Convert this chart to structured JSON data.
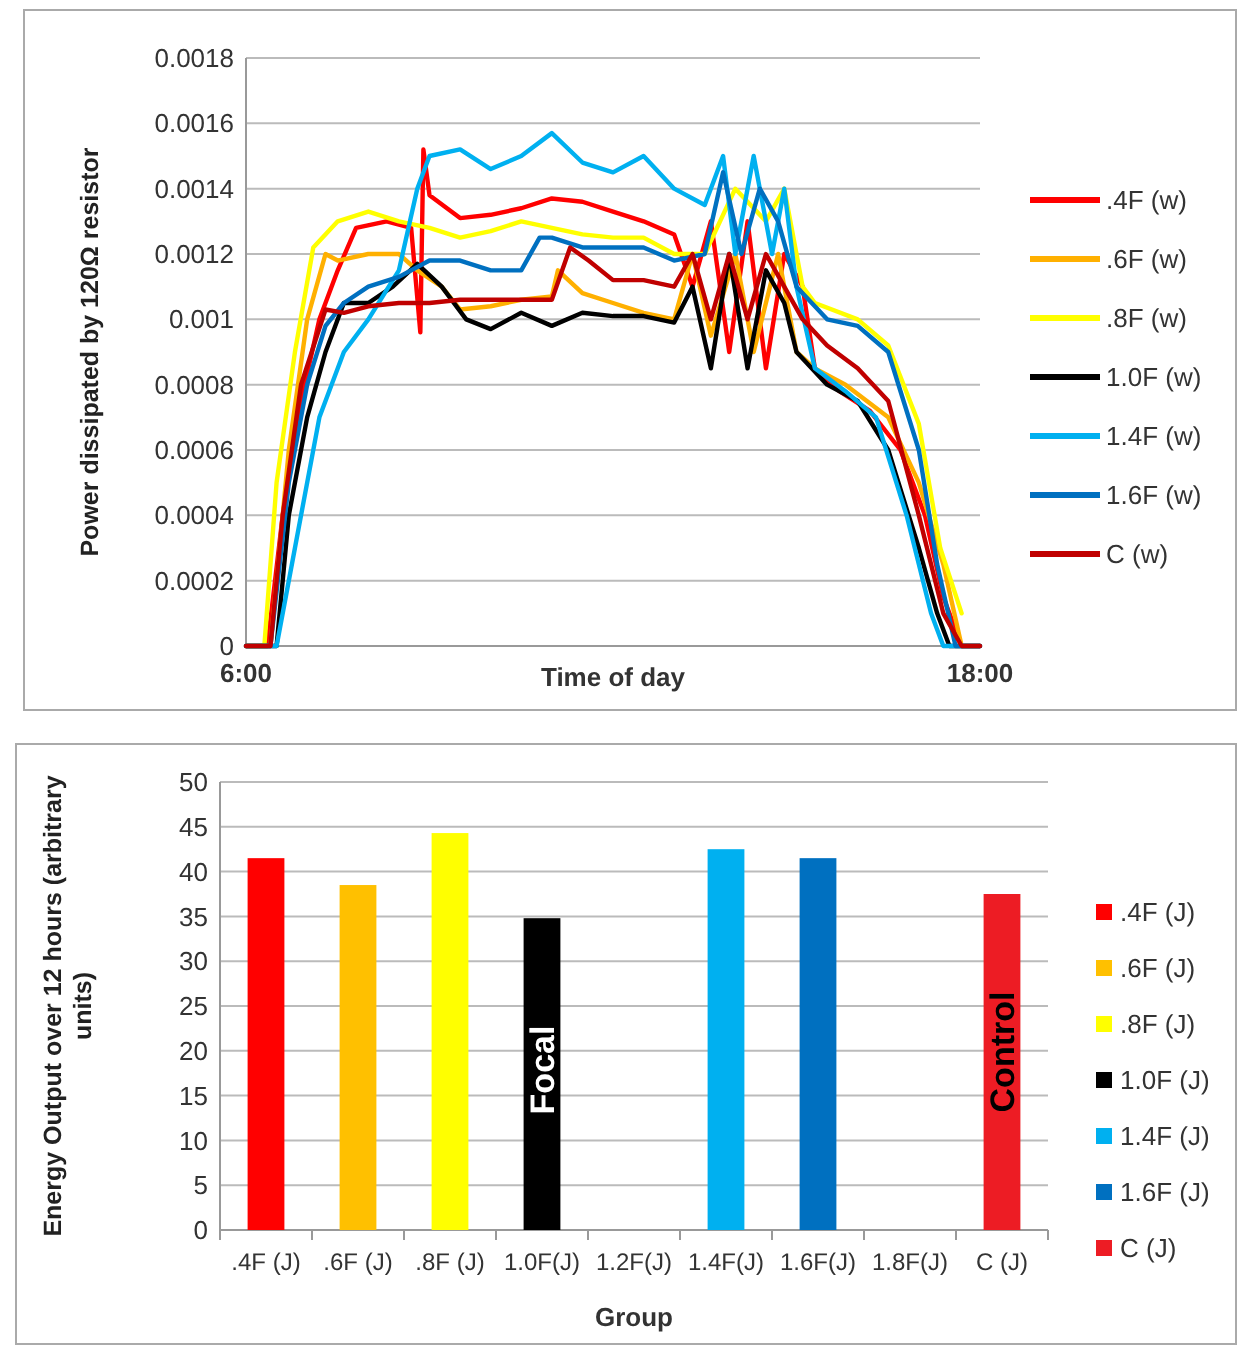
{
  "chart_data": [
    {
      "type": "line",
      "xlabel": "Time of day",
      "ylabel": "Power dissipated by 120Ω resistor",
      "xlim": [
        6,
        18
      ],
      "xticks": [
        {
          "value": 6,
          "label": "6:00"
        },
        {
          "value": 18,
          "label": "18:00"
        }
      ],
      "ylim": [
        0,
        0.0018
      ],
      "yticks": [
        0,
        0.0002,
        0.0004,
        0.0006,
        0.0008,
        0.001,
        0.0012,
        0.0014,
        0.0016,
        0.0018
      ],
      "grid": "y",
      "legend": "right",
      "marker": "none",
      "line_style": "solid",
      "series": [
        {
          "name": ".4F (w)",
          "color": "#ff0000",
          "x": [
            6,
            6.35,
            6.6,
            6.9,
            7.2,
            7.5,
            7.8,
            8.3,
            8.7,
            8.85,
            8.9,
            9,
            9.5,
            10,
            10.5,
            11,
            11.5,
            12,
            12.5,
            13,
            13.3,
            13.6,
            13.9,
            14.2,
            14.5,
            14.8,
            15.1,
            15.3,
            15.7,
            16.2,
            16.7,
            17.1,
            17.4,
            17.7,
            18
          ],
          "values": [
            0,
            0,
            0.0004,
            0.00075,
            0.001,
            0.00115,
            0.00128,
            0.0013,
            0.00128,
            0.00096,
            0.00152,
            0.00138,
            0.00131,
            0.00132,
            0.00134,
            0.00137,
            0.00136,
            0.00133,
            0.0013,
            0.00126,
            0.0011,
            0.0013,
            0.0009,
            0.0013,
            0.00085,
            0.0012,
            0.0011,
            0.00085,
            0.00078,
            0.00072,
            0.0006,
            0.0004,
            0.00015,
            0,
            0
          ]
        },
        {
          "name": ".6F (w)",
          "color": "#ffb000",
          "x": [
            6,
            6.4,
            6.7,
            7,
            7.3,
            7.5,
            8,
            8.5,
            8.8,
            9.2,
            9.5,
            10,
            10.5,
            11,
            11.1,
            11.5,
            12,
            12.5,
            13,
            13.3,
            13.6,
            14,
            14.3,
            14.7,
            15,
            15.3,
            15.8,
            16.5,
            17,
            17.4,
            17.7,
            18
          ],
          "values": [
            0,
            0,
            0.0006,
            0.001,
            0.0012,
            0.00118,
            0.0012,
            0.0012,
            0.00115,
            0.0011,
            0.00103,
            0.00104,
            0.00106,
            0.00107,
            0.00115,
            0.00108,
            0.00105,
            0.00102,
            0.001,
            0.0012,
            0.00095,
            0.0012,
            0.0009,
            0.0012,
            0.0009,
            0.00085,
            0.0008,
            0.0007,
            0.0005,
            0.00025,
            0,
            0
          ]
        },
        {
          "name": ".8F (w)",
          "color": "#ffff00",
          "x": [
            6,
            6.3,
            6.5,
            6.8,
            7.1,
            7.5,
            8,
            8.5,
            9,
            9.5,
            10,
            10.5,
            11,
            11.5,
            12,
            12.5,
            13,
            13.5,
            14,
            14.5,
            14.8,
            15.1,
            15.3,
            16,
            16.5,
            17,
            17.35,
            17.7
          ],
          "values": [
            0,
            0,
            0.0005,
            0.0009,
            0.00122,
            0.0013,
            0.00133,
            0.0013,
            0.00128,
            0.00125,
            0.00127,
            0.0013,
            0.00128,
            0.00126,
            0.00125,
            0.00125,
            0.0012,
            0.0012,
            0.0014,
            0.0013,
            0.0014,
            0.0011,
            0.00105,
            0.001,
            0.00092,
            0.00068,
            0.0003,
            0.0001
          ]
        },
        {
          "name": "1.0F (w)",
          "color": "#000000",
          "x": [
            6,
            6.5,
            6.7,
            7,
            7.3,
            7.6,
            8,
            8.4,
            8.8,
            9.2,
            9.6,
            10,
            10.5,
            11,
            11.5,
            12,
            12.5,
            13,
            13.3,
            13.6,
            13.9,
            14.2,
            14.5,
            14.8,
            15,
            15.5,
            16,
            16.5,
            17,
            17.3,
            17.5,
            18
          ],
          "values": [
            0,
            0,
            0.0004,
            0.0007,
            0.0009,
            0.00105,
            0.00105,
            0.0011,
            0.00117,
            0.0011,
            0.001,
            0.00097,
            0.00102,
            0.00098,
            0.00102,
            0.00101,
            0.00101,
            0.00099,
            0.0011,
            0.00085,
            0.0012,
            0.00085,
            0.00115,
            0.00105,
            0.0009,
            0.0008,
            0.00075,
            0.0006,
            0.0003,
            0.0001,
            0,
            0
          ]
        },
        {
          "name": "1.4F (w)",
          "color": "#00b0f0",
          "x": [
            6,
            6.5,
            6.8,
            7.2,
            7.6,
            8,
            8.5,
            8.8,
            9,
            9.5,
            10,
            10.5,
            11,
            11.5,
            12,
            12.5,
            13,
            13.5,
            13.8,
            14,
            14.3,
            14.6,
            14.8,
            15,
            15.3,
            15.8,
            16.3,
            16.8,
            17.2,
            17.4,
            18
          ],
          "values": [
            0,
            0,
            0.0003,
            0.0007,
            0.0009,
            0.001,
            0.00115,
            0.0014,
            0.0015,
            0.00152,
            0.00146,
            0.0015,
            0.00157,
            0.00148,
            0.00145,
            0.0015,
            0.0014,
            0.00135,
            0.0015,
            0.0012,
            0.0015,
            0.0012,
            0.0014,
            0.0011,
            0.00085,
            0.00078,
            0.0007,
            0.0004,
            0.0001,
            0,
            0
          ]
        },
        {
          "name": "1.6F (w)",
          "color": "#0070c0",
          "x": [
            6,
            6.4,
            6.7,
            7,
            7.3,
            7.6,
            8,
            8.5,
            9,
            9.5,
            10,
            10.5,
            10.8,
            11,
            11.5,
            12,
            12.5,
            13,
            13.5,
            13.8,
            14.1,
            14.4,
            14.7,
            15,
            15.5,
            16,
            16.5,
            17,
            17.3,
            17.6,
            18
          ],
          "values": [
            0,
            0,
            0.0005,
            0.0008,
            0.00098,
            0.00105,
            0.0011,
            0.00113,
            0.00118,
            0.00118,
            0.00115,
            0.00115,
            0.00125,
            0.00125,
            0.00122,
            0.00122,
            0.00122,
            0.00118,
            0.0012,
            0.00145,
            0.0012,
            0.0014,
            0.0013,
            0.0011,
            0.001,
            0.00098,
            0.0009,
            0.0006,
            0.00025,
            0,
            0
          ]
        },
        {
          "name": "C (w)",
          "color": "#c00000",
          "x": [
            6,
            6.4,
            6.6,
            6.9,
            7.3,
            7.6,
            8,
            8.5,
            9,
            9.5,
            10,
            10.5,
            11,
            11.3,
            11.6,
            12,
            12.5,
            13,
            13.3,
            13.6,
            13.9,
            14.2,
            14.5,
            14.8,
            15.1,
            15.5,
            16,
            16.5,
            17,
            17.4,
            17.7,
            18
          ],
          "values": [
            0,
            0,
            0.0004,
            0.0008,
            0.00103,
            0.00102,
            0.00104,
            0.00105,
            0.00105,
            0.00106,
            0.00106,
            0.00106,
            0.00106,
            0.00122,
            0.00118,
            0.00112,
            0.00112,
            0.0011,
            0.0012,
            0.001,
            0.0012,
            0.001,
            0.0012,
            0.0011,
            0.001,
            0.00092,
            0.00085,
            0.00075,
            0.0004,
            0.0001,
            0,
            0
          ]
        }
      ]
    },
    {
      "type": "bar",
      "xlabel": "Group",
      "ylabel": "Energy Output over 12 hours (arbitrary units)",
      "categories": [
        ".4F (J)",
        ".6F (J)",
        ".8F (J)",
        "1.0F(J)",
        "1.2F(J)",
        "1.4F(J)",
        "1.6F(J)",
        "1.8F(J)",
        "C (J)"
      ],
      "ylim": [
        0,
        50
      ],
      "yticks": [
        0,
        5,
        10,
        15,
        20,
        25,
        30,
        35,
        40,
        45,
        50
      ],
      "grid": "y",
      "legend": "right",
      "annotations": [
        "Focal",
        "Control"
      ],
      "series": [
        {
          "name": ".4F (J)",
          "color": "#ff0000",
          "values": [
            41.5,
            null,
            null,
            null,
            null,
            null,
            null,
            null,
            null
          ]
        },
        {
          "name": ".6F (J)",
          "color": "#ffc000",
          "values": [
            null,
            38.5,
            null,
            null,
            null,
            null,
            null,
            null,
            null
          ]
        },
        {
          "name": ".8F (J)",
          "color": "#ffff00",
          "values": [
            null,
            null,
            44.3,
            null,
            null,
            null,
            null,
            null,
            null
          ]
        },
        {
          "name": "1.0F (J)",
          "color": "#000000",
          "values": [
            null,
            null,
            null,
            34.8,
            null,
            null,
            null,
            null,
            null
          ]
        },
        {
          "name": "1.4F (J)",
          "color": "#00b0f0",
          "values": [
            null,
            null,
            null,
            null,
            null,
            42.5,
            null,
            null,
            null
          ]
        },
        {
          "name": "1.6F (J)",
          "color": "#0070c0",
          "values": [
            null,
            null,
            null,
            null,
            null,
            null,
            41.5,
            null,
            null
          ]
        },
        {
          "name": "C (J)",
          "color": "#ed1c24",
          "values": [
            null,
            null,
            null,
            null,
            null,
            null,
            null,
            null,
            37.5
          ]
        }
      ]
    }
  ]
}
